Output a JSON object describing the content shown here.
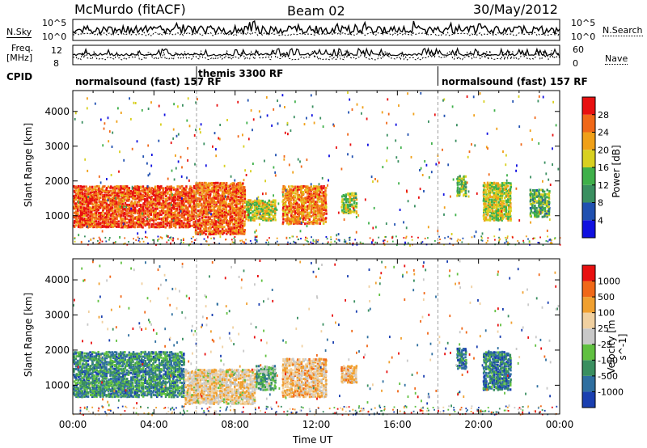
{
  "header": {
    "station": "McMurdo (fitACF)",
    "beam": "Beam 02",
    "date": "30/May/2012"
  },
  "strips": {
    "nsky_label": "N.Sky",
    "nsky_ticks": [
      "10^5",
      "10^0"
    ],
    "nsearch_label": "N.Search",
    "nsearch_ticks": [
      "10^5",
      "10^0"
    ],
    "freq_label_1": "Freq.",
    "freq_label_2": "[MHz]",
    "freq_ticks": [
      "12",
      "8"
    ],
    "nave_label": "Nave",
    "nave_ticks": [
      "60",
      "0"
    ],
    "cpid_label": "CPID"
  },
  "cpid_segments": [
    {
      "label": "normalsound (fast) 157 RF",
      "start_h": 0
    },
    {
      "label": "themis 3300 RF",
      "start_h": 6.1
    },
    {
      "label": "normalsound (fast) 157 RF",
      "start_h": 18.0
    }
  ],
  "chart_data": [
    {
      "type": "heatmap",
      "parameter": "Power",
      "colorbar_label": "Power [dB]",
      "colorbar_ticks": [
        "28",
        "24",
        "20",
        "16",
        "12",
        "8",
        "4"
      ],
      "colorbar_range": [
        0,
        32
      ],
      "colors": [
        "#1010e0",
        "#2050b0",
        "#3a8f60",
        "#3fb04a",
        "#d8d020",
        "#f0a018",
        "#f06818",
        "#e81010"
      ],
      "ylabel": "Slant Range [km]",
      "yticks": [
        "4000",
        "3000",
        "2000",
        "1000"
      ],
      "ylim": [
        180,
        4600
      ],
      "xlim_hours": [
        0,
        24
      ],
      "clusters": [
        {
          "t0": 0.0,
          "t1": 6.0,
          "r0": 700,
          "r1": 1900,
          "level": 0.85
        },
        {
          "t0": 6.0,
          "t1": 8.5,
          "r0": 500,
          "r1": 2000,
          "level": 0.8
        },
        {
          "t0": 8.5,
          "t1": 10.0,
          "r0": 900,
          "r1": 1500,
          "level": 0.55
        },
        {
          "t0": 10.3,
          "t1": 12.5,
          "r0": 800,
          "r1": 1900,
          "level": 0.75
        },
        {
          "t0": 13.2,
          "t1": 14.0,
          "r0": 1100,
          "r1": 1700,
          "level": 0.5
        },
        {
          "t0": 18.9,
          "t1": 19.4,
          "r0": 1600,
          "r1": 2200,
          "level": 0.45
        },
        {
          "t0": 20.2,
          "t1": 21.6,
          "r0": 900,
          "r1": 2000,
          "level": 0.55
        },
        {
          "t0": 22.5,
          "t1": 23.5,
          "r0": 1000,
          "r1": 1800,
          "level": 0.4
        }
      ]
    },
    {
      "type": "heatmap",
      "parameter": "Velocity",
      "colorbar_label": "Velocity [m s^-1]",
      "colorbar_ticks": [
        "1000",
        "500",
        "100",
        "25",
        "-25",
        "-100",
        "-500",
        "-1000"
      ],
      "colorbar_range": [
        -1000,
        1000
      ],
      "colors": [
        "#1a3fb0",
        "#2f6fa0",
        "#3a8f60",
        "#60c040",
        "#c8c8c8",
        "#f0d0a0",
        "#f0a030",
        "#f06818",
        "#e81010"
      ],
      "ylabel": "Slant Range [km]",
      "yticks": [
        "4000",
        "3000",
        "2000",
        "1000"
      ],
      "ylim": [
        180,
        4600
      ],
      "xlabel": "Time UT",
      "xticks": [
        "00:00",
        "04:00",
        "08:00",
        "12:00",
        "16:00",
        "20:00",
        "00:00"
      ],
      "xlim_hours": [
        0,
        24
      ],
      "clusters": [
        {
          "t0": 0.0,
          "t1": 5.5,
          "r0": 700,
          "r1": 2000,
          "level": 0.25
        },
        {
          "t0": 5.5,
          "t1": 9.0,
          "r0": 500,
          "r1": 1500,
          "level": 0.6
        },
        {
          "t0": 9.0,
          "t1": 10.0,
          "r0": 900,
          "r1": 1600,
          "level": 0.35
        },
        {
          "t0": 10.3,
          "t1": 12.5,
          "r0": 700,
          "r1": 1800,
          "level": 0.65
        },
        {
          "t0": 13.2,
          "t1": 14.0,
          "r0": 1100,
          "r1": 1600,
          "level": 0.65
        },
        {
          "t0": 18.9,
          "t1": 19.4,
          "r0": 1500,
          "r1": 2100,
          "level": 0.2
        },
        {
          "t0": 20.2,
          "t1": 21.6,
          "r0": 900,
          "r1": 2000,
          "level": 0.2
        }
      ]
    }
  ]
}
